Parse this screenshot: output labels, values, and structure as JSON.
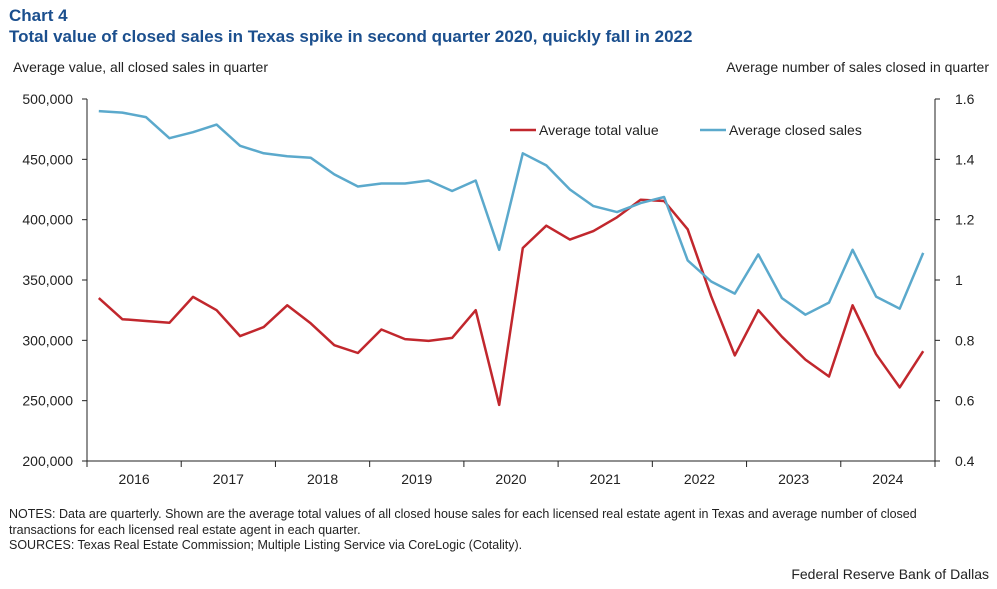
{
  "header": {
    "chart_number": "Chart 4",
    "title": "Total value of closed sales in Texas spike in second quarter 2020, quickly fall in 2022"
  },
  "chart_data": {
    "type": "line",
    "title": "Total value of closed sales in Texas spike in second quarter 2020, quickly fall in 2022",
    "ylabel_left": "Average value,  all closed sales in quarter",
    "ylabel_right": "Average number of sales closed in quarter",
    "ylim_left": [
      200000,
      500000
    ],
    "ylim_right": [
      0.4,
      1.6
    ],
    "yticks_left": [
      "500,000",
      "450,000",
      "400,000",
      "350,000",
      "300,000",
      "250,000",
      "200,000"
    ],
    "yticks_right": [
      "1.6",
      "1.4",
      "1.2",
      "1",
      "0.8",
      "0.6",
      "0.4"
    ],
    "years": [
      "2016",
      "2017",
      "2018",
      "2019",
      "2020",
      "2021",
      "2022",
      "2023",
      "2024"
    ],
    "quarters_per_year": 4,
    "n_points": 36,
    "legend_position": "top-right",
    "series": [
      {
        "name": "Average total value",
        "axis": "left",
        "color": "#c1272d",
        "values": [
          335000,
          317500,
          316000,
          314500,
          336000,
          325000,
          303500,
          311000,
          329000,
          314000,
          296000,
          289500,
          309000,
          301000,
          299500,
          302000,
          325000,
          246500,
          376500,
          395000,
          383500,
          390500,
          402000,
          416500,
          415500,
          392000,
          336500,
          287500,
          325000,
          303000,
          284000,
          270000,
          329000,
          288500,
          261000,
          291000
        ]
      },
      {
        "name": "Average closed sales",
        "axis": "right",
        "color": "#5ba9cc",
        "values": [
          1.56,
          1.555,
          1.54,
          1.47,
          1.49,
          1.515,
          1.445,
          1.42,
          1.41,
          1.405,
          1.35,
          1.31,
          1.32,
          1.32,
          1.33,
          1.295,
          1.33,
          1.1,
          1.42,
          1.38,
          1.3,
          1.245,
          1.225,
          1.255,
          1.275,
          1.065,
          0.995,
          0.955,
          1.085,
          0.94,
          0.885,
          0.925,
          1.1,
          0.945,
          0.905,
          1.09
        ]
      }
    ]
  },
  "footer": {
    "notes": "NOTES: Data are quarterly. Shown are the average total values of all closed house sales for each licensed real estate agent in Texas and average number of closed transactions for each licensed real estate agent in each quarter.",
    "sources": "SOURCES: Texas Real Estate Commission; Multiple Listing Service via CoreLogic (Cotality).",
    "credit": "Federal Reserve Bank of Dallas"
  }
}
